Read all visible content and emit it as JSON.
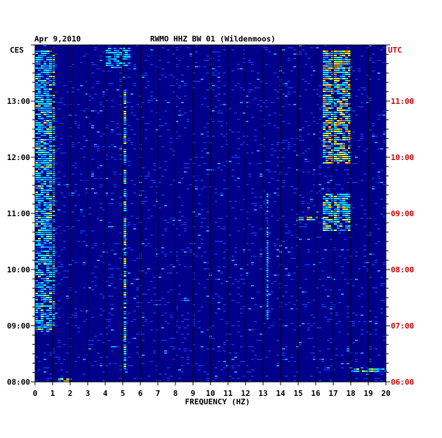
{
  "chart_data": {
    "type": "heatmap",
    "date": "Apr 9,2010",
    "title": "RWMO HHZ BW 01 (Wildenmoos)",
    "left_zone": "CES",
    "right_zone": "UTC",
    "xlabel": "FREQUENCY (HZ)",
    "xlim": [
      0,
      20
    ],
    "x_ticks": [
      "0",
      "1",
      "2",
      "3",
      "4",
      "5",
      "6",
      "7",
      "8",
      "9",
      "10",
      "11",
      "12",
      "13",
      "14",
      "15",
      "16",
      "17",
      "18",
      "19",
      "20"
    ],
    "ylim": [
      8.0,
      14.0
    ],
    "y_ticks_left": [
      {
        "v": 13,
        "label": "13:00"
      },
      {
        "v": 12,
        "label": "12:00"
      },
      {
        "v": 11,
        "label": "11:00"
      },
      {
        "v": 10,
        "label": "10:00"
      },
      {
        "v": 9,
        "label": "09:00"
      },
      {
        "v": 8,
        "label": "08:00"
      }
    ],
    "y_ticks_right": [
      {
        "v": 13,
        "label": "11:00"
      },
      {
        "v": 12,
        "label": "10:00"
      },
      {
        "v": 11,
        "label": "09:00"
      },
      {
        "v": 10,
        "label": "08:00"
      },
      {
        "v": 9,
        "label": "07:00"
      },
      {
        "v": 8,
        "label": "06:00"
      }
    ],
    "grid": "vertical lines at every 1 Hz",
    "colormap": [
      "#00008b",
      "#0b2bd4",
      "#1e90ff",
      "#00ffff",
      "#ffff00",
      "#ff8c00",
      "#ff0000"
    ],
    "label_colors": {
      "left": "#000000",
      "right": "#cc0000"
    },
    "features": [
      {
        "band_hz": [
          0,
          1.0
        ],
        "hours": [
          8.9,
          13.9
        ],
        "level": 0.55
      },
      {
        "band_hz": [
          4.0,
          5.3
        ],
        "hours": [
          13.6,
          13.95
        ],
        "level": 0.5
      },
      {
        "band_hz": [
          16.4,
          17.9
        ],
        "hours": [
          11.9,
          13.9
        ],
        "level": 0.75
      },
      {
        "band_hz": [
          16.4,
          17.9
        ],
        "hours": [
          10.7,
          11.35
        ],
        "level": 0.6
      },
      {
        "band_hz": [
          15.0,
          16.0
        ],
        "hours": [
          10.9,
          10.94
        ],
        "level": 0.8
      },
      {
        "band_hz": [
          18.0,
          20.0
        ],
        "hours": [
          8.2,
          8.24
        ],
        "level": 0.7
      },
      {
        "band_hz": [
          1.3,
          2.0
        ],
        "hours": [
          8.0,
          8.06
        ],
        "level": 0.9
      },
      {
        "band_hz": [
          5.05,
          5.2
        ],
        "hours": [
          8.2,
          13.2
        ],
        "level": 0.6
      },
      {
        "band_hz": [
          13.2,
          13.3
        ],
        "hours": [
          9.1,
          11.35
        ],
        "level": 0.5
      }
    ]
  }
}
